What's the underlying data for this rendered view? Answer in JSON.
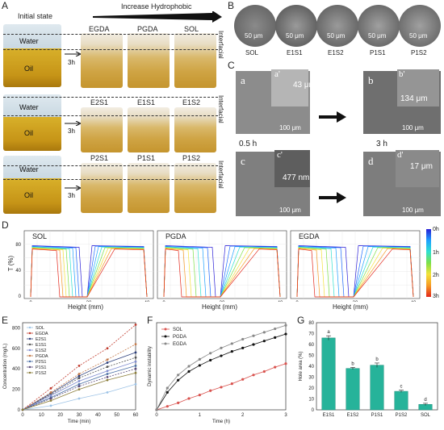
{
  "panels": {
    "A": "A",
    "B": "B",
    "C": "C",
    "D": "D",
    "E": "E",
    "F": "F",
    "G": "G"
  },
  "panelA": {
    "initial_state": "Initial state",
    "increase": "Increase Hydrophobic",
    "water": "Water",
    "oil": "Oil",
    "time": "3h",
    "interfacial": "Interfacial",
    "row1": [
      "EGDA",
      "PGDA",
      "SOL"
    ],
    "row2": [
      "E2S1",
      "E1S1",
      "E1S2"
    ],
    "row3": [
      "P2S1",
      "P1S1",
      "P1S2"
    ]
  },
  "panelB": {
    "labels": [
      "SOL",
      "E1S1",
      "E1S2",
      "P1S1",
      "P1S2"
    ],
    "scale": "50 μm"
  },
  "panelC": {
    "t1": "0.5 h",
    "t2": "3 h",
    "a": "a",
    "a_prime": "a'",
    "b": "b",
    "b_prime": "b'",
    "c": "c",
    "c_prime": "c'",
    "d": "d",
    "d_prime": "d'",
    "a_meas": "43 μm",
    "b_meas": "134 μm",
    "c_meas": "477 nm",
    "d_meas": "17 μm",
    "scale100": "100 μm"
  },
  "panelD": {
    "ylabel": "T (%)",
    "xlabel": "Height (mm)",
    "plots": [
      "SOL",
      "PGDA",
      "EGDA"
    ],
    "colorbar": [
      "0h",
      "1h",
      "2h",
      "3h"
    ],
    "yticks": [
      "0",
      "40",
      "80"
    ],
    "xticks": [
      "0",
      "20",
      "40"
    ]
  },
  "panelE": {
    "ylabel": "Concentration (mg/L)",
    "xlabel": "Time (min)",
    "legend": [
      "SOL",
      "EGDA",
      "E2S1",
      "E1S1",
      "E1S2",
      "PGDA",
      "P2S1",
      "P1S1",
      "P1S2"
    ],
    "colors": [
      "#9dc3e6",
      "#c0392b",
      "#2c3e7a",
      "#555555",
      "#7f8ccf",
      "#c47a4a",
      "#4a6fa5",
      "#5b4a7a",
      "#8b7d3a"
    ],
    "yticks": [
      "0",
      "200",
      "400",
      "600",
      "800"
    ],
    "xticks": [
      "0",
      "10",
      "20",
      "30",
      "40",
      "50",
      "60"
    ]
  },
  "panelF": {
    "ylabel": "Dynamic instability",
    "xlabel": "Time (h)",
    "legend": [
      "SOL",
      "PGDA",
      "EGDA"
    ],
    "xticks": [
      "0",
      "1",
      "2",
      "3"
    ]
  },
  "panelG": {
    "ylabel": "Hole area (%)",
    "categories": [
      "E1S1",
      "E1S2",
      "P1S1",
      "P1S2",
      "SOL"
    ],
    "letters": [
      "a",
      "b",
      "b",
      "c",
      "d"
    ],
    "yticks": [
      "0",
      "10",
      "20",
      "30",
      "40",
      "50",
      "60",
      "70",
      "80"
    ]
  },
  "chart_data": [
    {
      "type": "line",
      "title": "",
      "xlabel": "Time (min)",
      "ylabel": "Concentration (mg/L)",
      "ylim": [
        0,
        850
      ],
      "x": [
        0,
        15,
        30,
        45,
        60
      ],
      "series": [
        {
          "name": "SOL",
          "values": [
            0,
            40,
            110,
            170,
            250
          ]
        },
        {
          "name": "EGDA",
          "values": [
            0,
            210,
            430,
            600,
            830
          ]
        },
        {
          "name": "E2S1",
          "values": [
            0,
            160,
            330,
            460,
            560
          ]
        },
        {
          "name": "E1S1",
          "values": [
            0,
            150,
            310,
            420,
            510
          ]
        },
        {
          "name": "E1S2",
          "values": [
            0,
            140,
            280,
            380,
            470
          ]
        },
        {
          "name": "PGDA",
          "values": [
            0,
            170,
            350,
            490,
            640
          ]
        },
        {
          "name": "P2S1",
          "values": [
            0,
            120,
            250,
            350,
            430
          ]
        },
        {
          "name": "P1S1",
          "values": [
            0,
            110,
            230,
            320,
            400
          ]
        },
        {
          "name": "P1S2",
          "values": [
            0,
            90,
            200,
            290,
            360
          ]
        }
      ]
    },
    {
      "type": "line",
      "title": "",
      "xlabel": "Time (h)",
      "ylabel": "Dynamic instability",
      "ylim": [
        0,
        1
      ],
      "x": [
        0,
        0.25,
        0.5,
        0.75,
        1,
        1.25,
        1.5,
        1.75,
        2,
        2.25,
        2.5,
        2.75,
        3
      ],
      "series": [
        {
          "name": "SOL",
          "values": [
            0,
            0.04,
            0.08,
            0.13,
            0.17,
            0.22,
            0.26,
            0.3,
            0.35,
            0.4,
            0.44,
            0.49,
            0.53
          ]
        },
        {
          "name": "PGDA",
          "values": [
            0,
            0.2,
            0.34,
            0.44,
            0.51,
            0.57,
            0.62,
            0.67,
            0.71,
            0.75,
            0.79,
            0.83,
            0.87
          ]
        },
        {
          "name": "EGDA",
          "values": [
            0,
            0.25,
            0.4,
            0.5,
            0.58,
            0.65,
            0.71,
            0.76,
            0.81,
            0.85,
            0.89,
            0.93,
            0.97
          ]
        }
      ]
    },
    {
      "type": "bar",
      "title": "",
      "xlabel": "",
      "ylabel": "Hole area (%)",
      "ylim": [
        0,
        80
      ],
      "categories": [
        "E1S1",
        "E1S2",
        "P1S1",
        "P1S2",
        "SOL"
      ],
      "values": [
        66,
        38,
        41,
        17,
        5
      ],
      "errors": [
        2,
        1,
        2,
        1,
        1
      ]
    }
  ]
}
